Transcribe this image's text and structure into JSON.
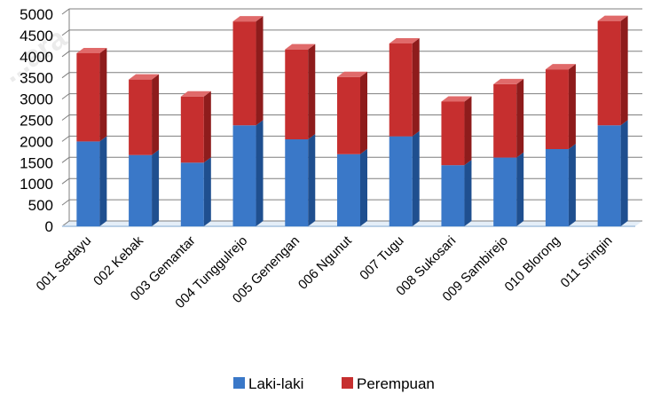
{
  "watermark": "...ara",
  "chart_data": {
    "type": "bar",
    "stacked": true,
    "three_d": true,
    "categories": [
      "001 Sedayu",
      "002 Kebak",
      "003 Gemantar",
      "004 Tunggulrejo",
      "005 Genengan",
      "006 Ngunut",
      "007 Tugu",
      "008 Sukosari",
      "009 Sambirejo",
      "010 Blorong",
      "011 Sringin"
    ],
    "series": [
      {
        "name": "Laki-laki",
        "color": "#3a78c8",
        "values": [
          2000,
          1680,
          1500,
          2380,
          2050,
          1700,
          2120,
          1440,
          1620,
          1820,
          2380
        ]
      },
      {
        "name": "Perempuan",
        "color": "#c62f2f",
        "values": [
          2080,
          1780,
          1560,
          2450,
          2120,
          1820,
          2190,
          1500,
          1730,
          1880,
          2460
        ]
      }
    ],
    "ylim": [
      0,
      5000
    ],
    "yticks": [
      "0",
      "500",
      "1000",
      "1500",
      "2000",
      "2500",
      "3000",
      "3500",
      "4000",
      "4500",
      "5000"
    ],
    "grid": true,
    "legend_position": "bottom"
  }
}
